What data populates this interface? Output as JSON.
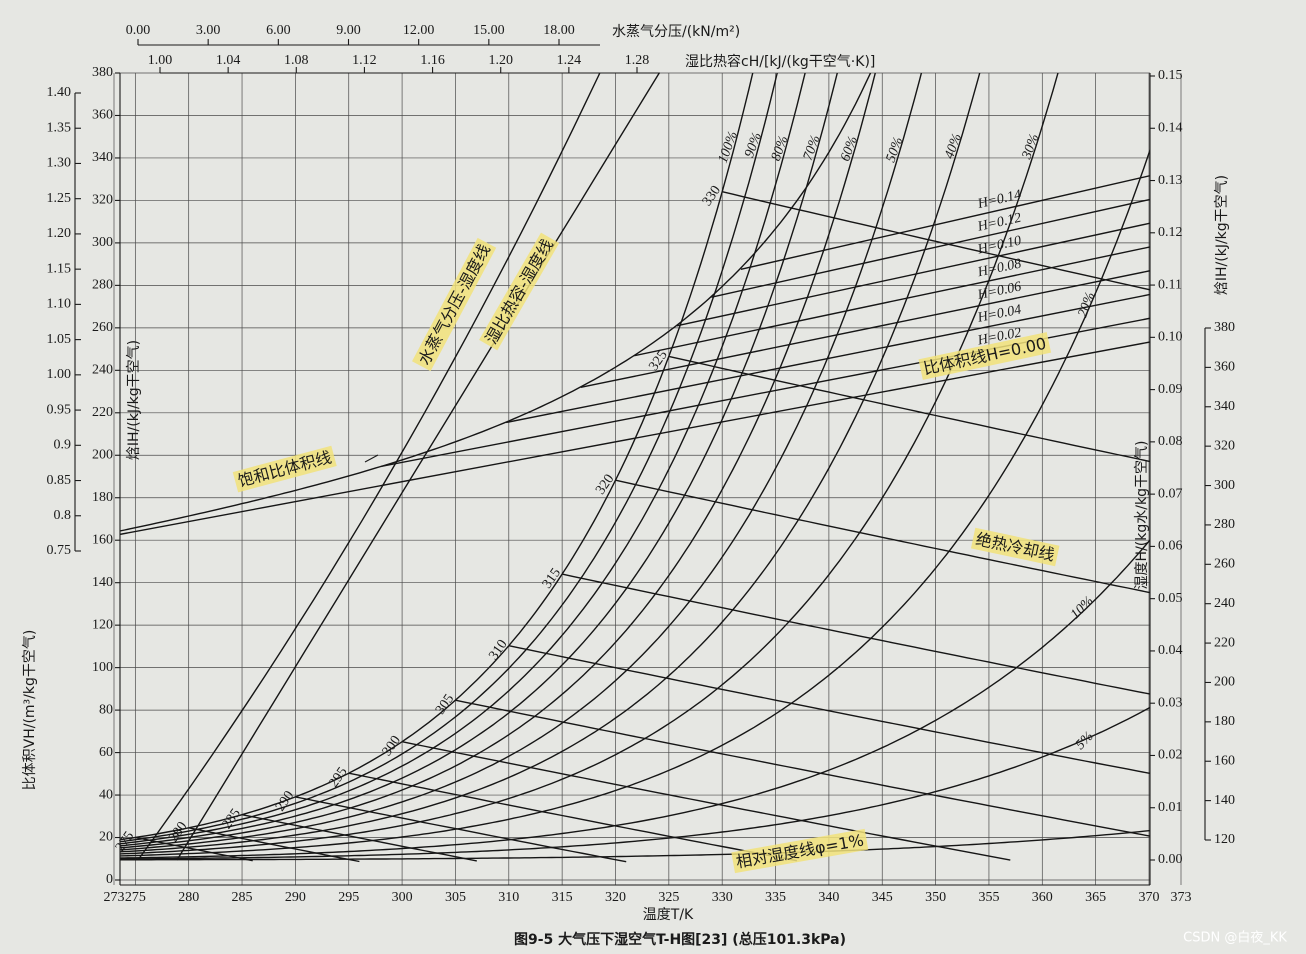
{
  "chart_data": {
    "type": "psychrometric",
    "title": "图9-5  大气压下湿空气T-H图[23]  (总压101.3kPa)",
    "xlabel": "温度T/K",
    "xlim": [
      273,
      373
    ],
    "xticks": [
      273,
      275,
      280,
      285,
      290,
      295,
      300,
      305,
      310,
      315,
      320,
      325,
      330,
      335,
      340,
      345,
      350,
      355,
      360,
      365,
      370,
      373
    ],
    "pressure_axis": {
      "label": "水蒸气分压/(kN/m²)",
      "lim": [
        0,
        18
      ],
      "ticks": [
        {
          "value": 0,
          "label": "0.00"
        },
        {
          "value": 3,
          "label": "3.00"
        },
        {
          "value": 6,
          "label": "6.00"
        },
        {
          "value": 9,
          "label": "9.00"
        },
        {
          "value": 12,
          "label": "12.00"
        },
        {
          "value": 15,
          "label": "15.00"
        },
        {
          "value": 18,
          "label": "18.00"
        }
      ]
    },
    "heat_capacity_axis": {
      "label": "湿比热容cH/[kJ/(kg干空气·K)]",
      "lim": [
        1.0,
        1.28
      ],
      "ticks": [
        {
          "value": 1.0,
          "label": "1.00"
        },
        {
          "value": 1.04,
          "label": "1.04"
        },
        {
          "value": 1.08,
          "label": "1.08"
        },
        {
          "value": 1.12,
          "label": "1.12"
        },
        {
          "value": 1.16,
          "label": "1.16"
        },
        {
          "value": 1.2,
          "label": "1.20"
        },
        {
          "value": 1.24,
          "label": "1.24"
        },
        {
          "value": 1.28,
          "label": "1.28"
        }
      ]
    },
    "volume_axis": {
      "label": "比体积VH/(m³/kg干空气)",
      "lim": [
        0.75,
        1.4
      ],
      "ticks": [
        0.75,
        0.8,
        0.85,
        0.9,
        0.95,
        {
          "value": 1.0,
          "label": "1.00"
        },
        1.05,
        {
          "value": 1.1,
          "label": "1.10"
        },
        1.15,
        {
          "value": 1.2,
          "label": "1.20"
        },
        1.25,
        {
          "value": 1.3,
          "label": "1.30"
        },
        1.35,
        {
          "value": 1.4,
          "label": "1.40"
        }
      ]
    },
    "enthalpy_left_axis": {
      "label": "焓IH/(kJ/kg干空气)",
      "lim": [
        0,
        380
      ],
      "ticks": [
        0,
        20,
        40,
        60,
        80,
        100,
        120,
        140,
        160,
        180,
        200,
        220,
        240,
        260,
        280,
        300,
        320,
        340,
        360,
        380
      ]
    },
    "humidity_axis": {
      "label": "湿度H/(kg水/kg干空气)",
      "lim": [
        0,
        0.15
      ],
      "ticks": [
        {
          "value": 0,
          "label": "0.00"
        },
        {
          "value": 0.01,
          "label": "0.01"
        },
        {
          "value": 0.02,
          "label": "0.02"
        },
        {
          "value": 0.03,
          "label": "0.03"
        },
        {
          "value": 0.04,
          "label": "0.04"
        },
        {
          "value": 0.05,
          "label": "0.05"
        },
        {
          "value": 0.06,
          "label": "0.06"
        },
        {
          "value": 0.07,
          "label": "0.07"
        },
        {
          "value": 0.08,
          "label": "0.08"
        },
        {
          "value": 0.09,
          "label": "0.09"
        },
        {
          "value": 0.1,
          "label": "0.10"
        },
        {
          "value": 0.11,
          "label": "0.11"
        },
        {
          "value": 0.12,
          "label": "0.12"
        },
        {
          "value": 0.13,
          "label": "0.13"
        },
        {
          "value": 0.14,
          "label": "0.14"
        },
        {
          "value": 0.15,
          "label": "0.15"
        }
      ]
    },
    "enthalpy_right_axis": {
      "label": "焓IH/(kJ/kg干空气)",
      "lim": [
        120,
        380
      ],
      "ticks": [
        120,
        140,
        160,
        180,
        200,
        220,
        240,
        260,
        280,
        300,
        320,
        340,
        360,
        380
      ]
    },
    "rh_curves": [
      {
        "value": 100,
        "label": "100%"
      },
      {
        "value": 90,
        "label": "90%"
      },
      {
        "value": 80,
        "label": "80%"
      },
      {
        "value": 70,
        "label": "70%"
      },
      {
        "value": 60,
        "label": "60%"
      },
      {
        "value": 50,
        "label": "50%"
      },
      {
        "value": 40,
        "label": "40%"
      },
      {
        "value": 30,
        "label": "30%"
      },
      {
        "value": 20,
        "label": "20%"
      },
      {
        "value": 10,
        "label": "10%"
      },
      {
        "value": 5,
        "label": "5%"
      },
      {
        "value": 1
      }
    ],
    "adiabatic_lines": [
      275,
      280,
      285,
      290,
      295,
      300,
      305,
      310,
      315,
      320,
      325,
      330
    ],
    "volume_lines": [
      {
        "value": 0
      },
      {
        "value": 0.02,
        "label": "H=0.02"
      },
      {
        "value": 0.04,
        "label": "H=0.04"
      },
      {
        "value": 0.06,
        "label": "H=0.06"
      },
      {
        "value": 0.08,
        "label": "H=0.08"
      },
      {
        "value": 0.1,
        "label": "H=0.10"
      },
      {
        "value": 0.12,
        "label": "H=0.12"
      },
      {
        "value": 0.14,
        "label": "H=0.14"
      }
    ],
    "annotations": [
      "水蒸气分压-湿度线",
      "湿比热容-湿度线",
      "饱和比体积线",
      "比体积线H=0.00",
      "绝热冷却线",
      "相对湿度线φ=1%"
    ],
    "watermark": "CSDN @白夜_KK"
  }
}
